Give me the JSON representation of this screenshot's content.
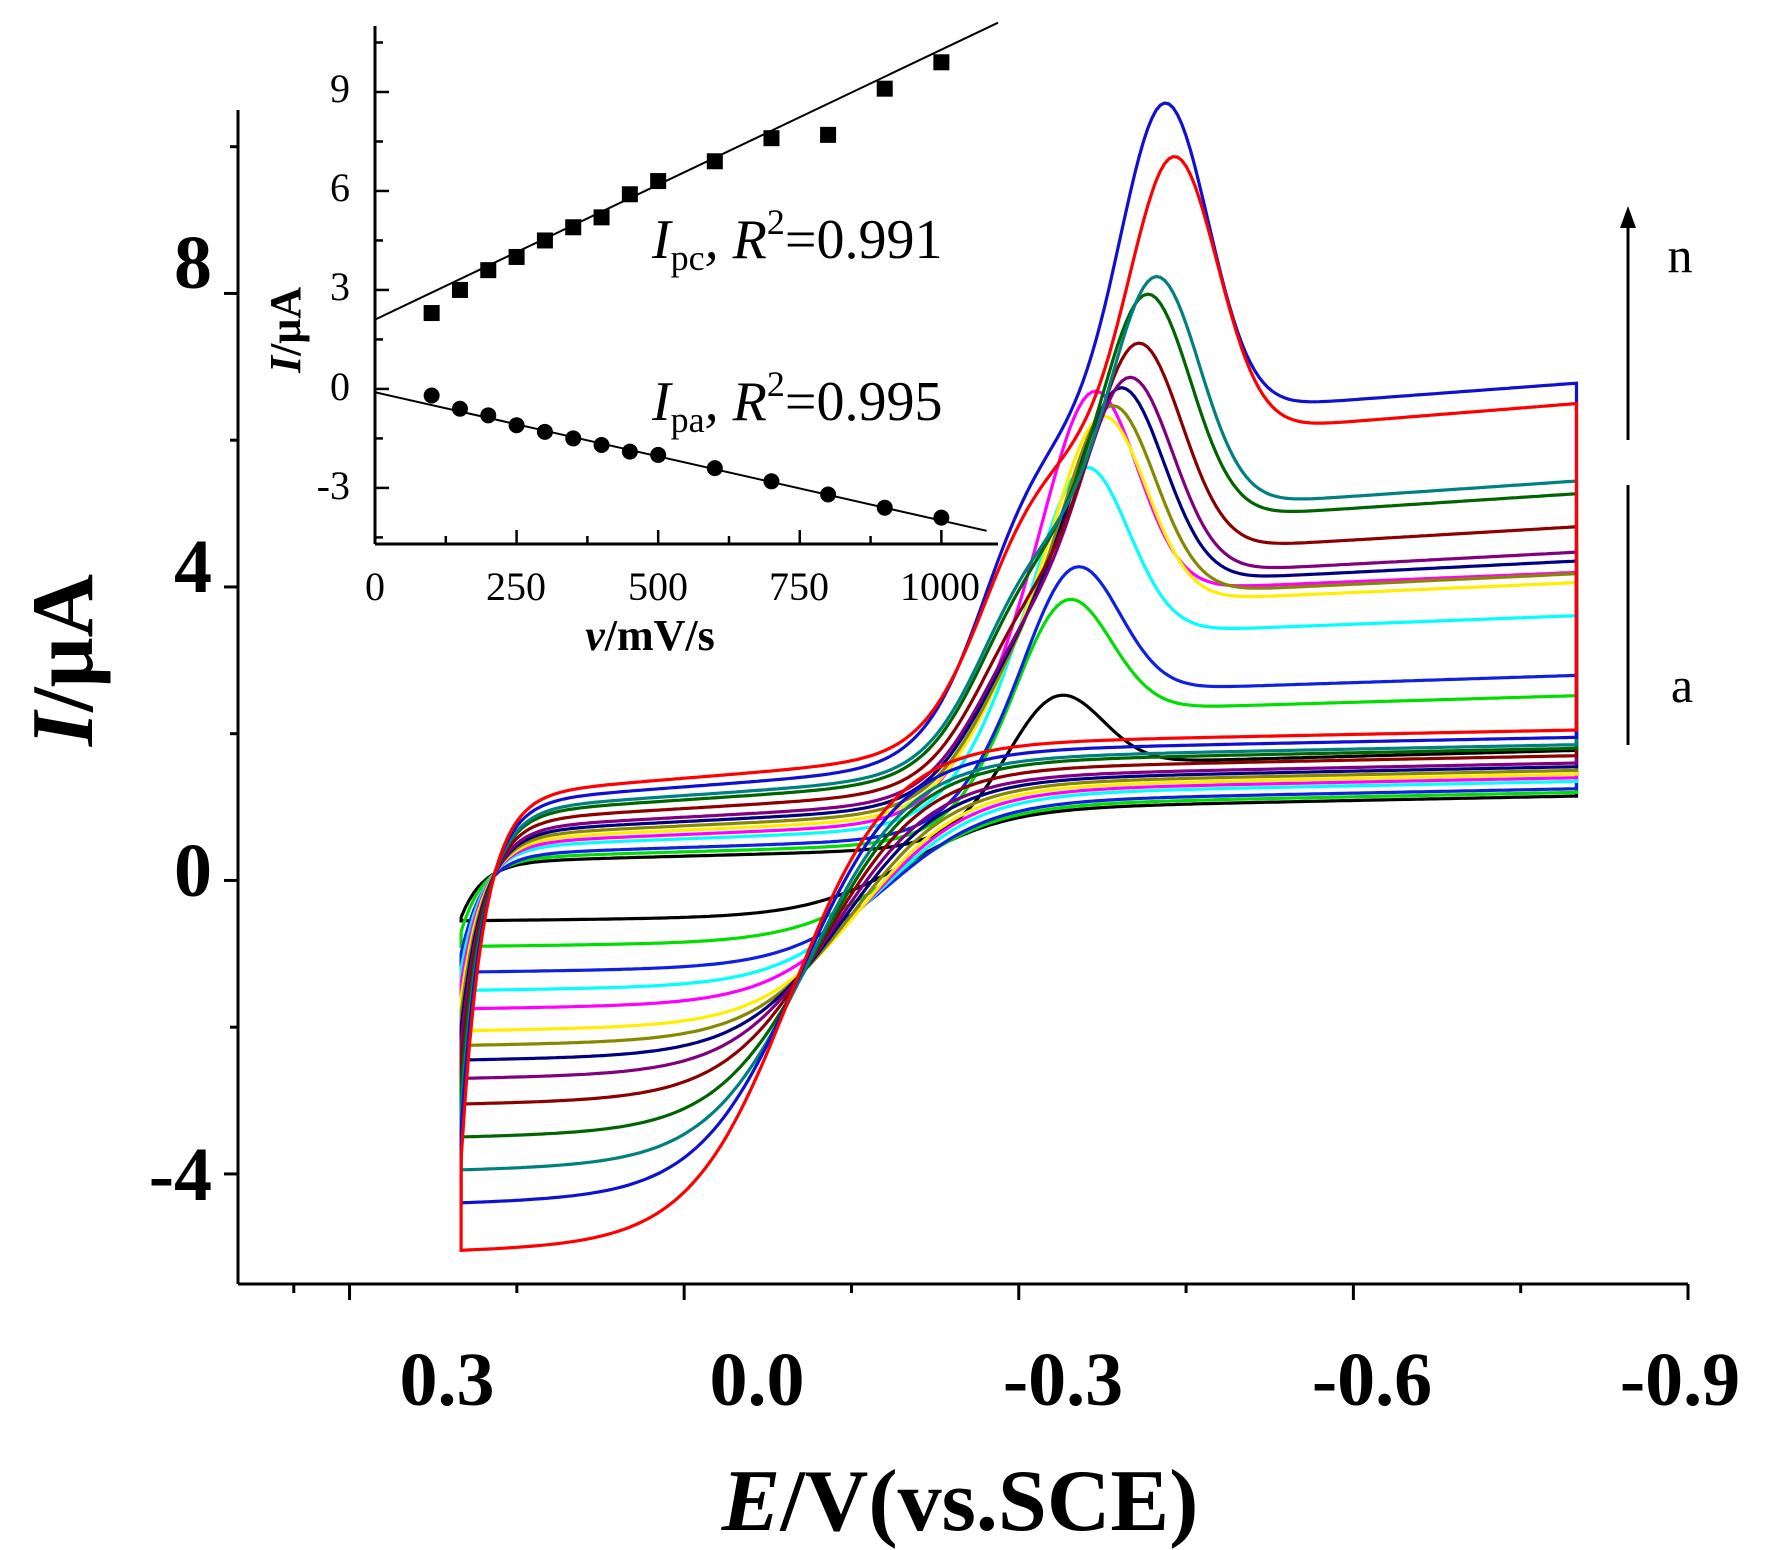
{
  "chart_data": [
    {
      "type": "line",
      "xlabel": {
        "italic": "E",
        "rest": "/V(vs.SCE)"
      },
      "ylabel": {
        "italic": "I",
        "rest": "/μA"
      },
      "xlim": [
        0.4,
        -0.9
      ],
      "ylim": [
        -5.5,
        10.5
      ],
      "x_ticks": [
        "0.3",
        "0.0",
        "-0.3",
        "-0.6",
        "-0.9"
      ],
      "y_ticks": [
        "8",
        "4",
        "0",
        "-4"
      ],
      "series_count": 14,
      "series_labels": {
        "first": "a",
        "last": "n"
      },
      "colors": [
        "#000000",
        "#00dd00",
        "#1020e0",
        "#00ffff",
        "#ff00ff",
        "#ffee00",
        "#888800",
        "#000080",
        "#800080",
        "#8b0000",
        "#006400",
        "#008080",
        "#1010d0",
        "#ff0000"
      ],
      "series": [
        {
          "color": "#000000",
          "peak_cathodic": 2.4,
          "base_negative": 0.25,
          "floor_reverse": -0.55,
          "start_current": -0.5
        },
        {
          "color": "#00dd00",
          "peak_cathodic": 3.7,
          "base_negative": 0.3,
          "floor_reverse": -0.9,
          "start_current": -0.7
        },
        {
          "color": "#1020e0",
          "peak_cathodic": 4.1,
          "base_negative": 0.35,
          "floor_reverse": -1.25,
          "start_current": -1.0
        },
        {
          "color": "#00ffff",
          "peak_cathodic": 5.4,
          "base_negative": 0.45,
          "floor_reverse": -1.5,
          "start_current": -1.2
        },
        {
          "color": "#ff00ff",
          "peak_cathodic": 6.4,
          "base_negative": 0.5,
          "floor_reverse": -1.75,
          "start_current": -1.4
        },
        {
          "color": "#ffee00",
          "peak_cathodic": 6.0,
          "base_negative": 0.55,
          "floor_reverse": -2.05,
          "start_current": -1.6
        },
        {
          "color": "#888800",
          "peak_cathodic": 6.1,
          "base_negative": 0.6,
          "floor_reverse": -2.25,
          "start_current": -1.8
        },
        {
          "color": "#000080",
          "peak_cathodic": 6.3,
          "base_negative": 0.65,
          "floor_reverse": -2.45,
          "start_current": -2.0
        },
        {
          "color": "#800080",
          "peak_cathodic": 6.4,
          "base_negative": 0.7,
          "floor_reverse": -2.7,
          "start_current": -2.2
        },
        {
          "color": "#8b0000",
          "peak_cathodic": 6.8,
          "base_negative": 0.8,
          "floor_reverse": -3.05,
          "start_current": -2.5
        },
        {
          "color": "#006400",
          "peak_cathodic": 7.4,
          "base_negative": 0.9,
          "floor_reverse": -3.5,
          "start_current": -2.8
        },
        {
          "color": "#008080",
          "peak_cathodic": 7.6,
          "base_negative": 0.95,
          "floor_reverse": -3.95,
          "start_current": -3.1
        },
        {
          "color": "#1010d0",
          "peak_cathodic": 9.9,
          "base_negative": 1.05,
          "floor_reverse": -4.4,
          "start_current": -3.4
        },
        {
          "color": "#ff0000",
          "peak_cathodic": 9.1,
          "base_negative": 1.15,
          "floor_reverse": -5.05,
          "start_current": -3.8
        }
      ]
    },
    {
      "type": "scatter",
      "xlabel": {
        "italic": "v",
        "rest": "/mV/s"
      },
      "ylabel": {
        "italic": "I",
        "rest": "/μA"
      },
      "xlim": [
        -10,
        1090
      ],
      "ylim": [
        -4.7,
        11
      ],
      "x_ticks": [
        0,
        250,
        500,
        750,
        1000
      ],
      "y_ticks": [
        9,
        6,
        3,
        0,
        -3
      ],
      "series": [
        {
          "name": "Ipc",
          "marker": "square",
          "x": [
            100,
            150,
            200,
            250,
            300,
            350,
            400,
            450,
            500,
            600,
            700,
            800,
            900,
            1000
          ],
          "y": [
            2.3,
            3.0,
            3.6,
            4.0,
            4.5,
            4.9,
            5.2,
            5.9,
            6.3,
            6.9,
            7.6,
            7.7,
            9.1,
            9.9
          ],
          "fit": {
            "x": [
              0,
              1100
            ],
            "y": [
              2.1,
              11.1
            ]
          },
          "annotation": {
            "main": "I",
            "sub": "pc",
            "r2_text": ", R",
            "sup": "2",
            "value": "=0.991"
          }
        },
        {
          "name": "Ipa",
          "marker": "circle",
          "x": [
            100,
            150,
            200,
            250,
            300,
            350,
            400,
            450,
            500,
            600,
            700,
            800,
            900,
            1000
          ],
          "y": [
            -0.2,
            -0.6,
            -0.8,
            -1.1,
            -1.3,
            -1.5,
            -1.7,
            -1.9,
            -2.0,
            -2.4,
            -2.8,
            -3.2,
            -3.6,
            -3.9
          ],
          "fit": {
            "x": [
              0,
              1080
            ],
            "y": [
              -0.1,
              -4.3
            ]
          },
          "annotation": {
            "main": "I",
            "sub": "pa",
            "r2_text": ", R",
            "sup": "2",
            "value": "=0.995"
          }
        }
      ]
    }
  ]
}
